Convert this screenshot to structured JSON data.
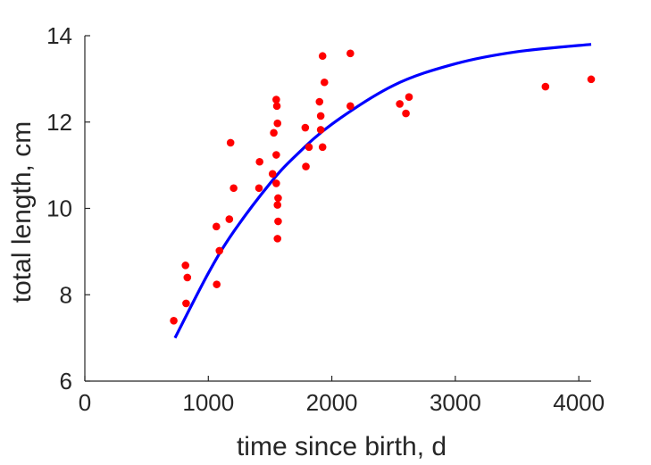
{
  "chart_data": {
    "type": "scatter",
    "xlabel": "time since birth, d",
    "ylabel": "total length, cm",
    "xlim": [
      0,
      4100
    ],
    "ylim": [
      6,
      14
    ],
    "xticks": [
      0,
      1000,
      2000,
      3000,
      4000
    ],
    "yticks": [
      6,
      8,
      10,
      12,
      14
    ],
    "grid": false,
    "legend": "none",
    "series": [
      {
        "kind": "points",
        "color": "#ff0000",
        "points": [
          [
            720,
            7.4
          ],
          [
            815,
            8.68
          ],
          [
            830,
            8.4
          ],
          [
            820,
            7.8
          ],
          [
            1065,
            9.58
          ],
          [
            1068,
            8.24
          ],
          [
            1090,
            9.02
          ],
          [
            1170,
            9.75
          ],
          [
            1180,
            11.52
          ],
          [
            1205,
            10.47
          ],
          [
            1410,
            10.47
          ],
          [
            1415,
            11.08
          ],
          [
            1520,
            10.8
          ],
          [
            1530,
            11.75
          ],
          [
            1550,
            12.52
          ],
          [
            1555,
            12.37
          ],
          [
            1560,
            11.97
          ],
          [
            1550,
            11.24
          ],
          [
            1550,
            10.58
          ],
          [
            1565,
            10.24
          ],
          [
            1560,
            10.08
          ],
          [
            1565,
            9.7
          ],
          [
            1560,
            9.3
          ],
          [
            1785,
            11.87
          ],
          [
            1790,
            10.97
          ],
          [
            1815,
            11.42
          ],
          [
            1900,
            12.47
          ],
          [
            1910,
            12.14
          ],
          [
            1910,
            11.82
          ],
          [
            1925,
            11.42
          ],
          [
            1925,
            13.53
          ],
          [
            1940,
            12.92
          ],
          [
            2150,
            13.59
          ],
          [
            2150,
            12.37
          ],
          [
            2550,
            12.42
          ],
          [
            2600,
            12.2
          ],
          [
            2625,
            12.58
          ],
          [
            3730,
            12.82
          ],
          [
            4100,
            12.99
          ]
        ]
      },
      {
        "kind": "curve",
        "color": "#0000ff",
        "points": [
          [
            730,
            7.0
          ],
          [
            1000,
            8.5
          ],
          [
            1200,
            9.44
          ],
          [
            1500,
            10.58
          ],
          [
            1700,
            11.2
          ],
          [
            2000,
            11.95
          ],
          [
            2500,
            12.85
          ],
          [
            3000,
            13.35
          ],
          [
            3500,
            13.63
          ],
          [
            4100,
            13.8
          ]
        ]
      }
    ]
  }
}
